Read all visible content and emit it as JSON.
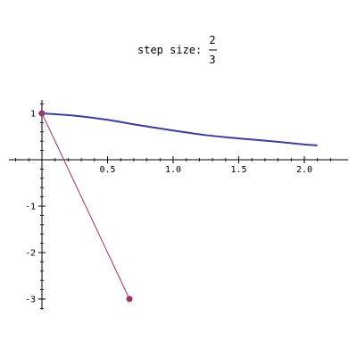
{
  "chart_data": {
    "type": "line",
    "title": {
      "prefix": "step size:",
      "numerator": "2",
      "denominator": "3"
    },
    "xlabel": "",
    "ylabel": "",
    "xlim": [
      -0.5,
      2.3
    ],
    "ylim": [
      -3.2,
      1.2
    ],
    "grid": false,
    "x_ticks": [
      {
        "value": 0.5,
        "label": "0.5"
      },
      {
        "value": 1.0,
        "label": "1.0"
      },
      {
        "value": 1.5,
        "label": "1.5"
      },
      {
        "value": 2.0,
        "label": "2.0"
      }
    ],
    "y_ticks": [
      {
        "value": 1,
        "label": "1"
      },
      {
        "value": -1,
        "label": "-1"
      },
      {
        "value": -2,
        "label": "-2"
      },
      {
        "value": -3,
        "label": "-3"
      }
    ],
    "series": [
      {
        "kind": "curve",
        "color": "#3d3d99",
        "x": [
          0,
          0.25,
          0.5,
          0.75,
          1.0,
          1.25,
          1.5,
          1.75,
          2.0,
          2.1
        ],
        "y": [
          1.0,
          0.95,
          0.86,
          0.74,
          0.63,
          0.53,
          0.46,
          0.4,
          0.33,
          0.31
        ]
      },
      {
        "kind": "segment-with-points",
        "color": "#9b3470",
        "x": [
          0,
          0.667
        ],
        "y": [
          1.0,
          -3.0
        ]
      }
    ]
  }
}
